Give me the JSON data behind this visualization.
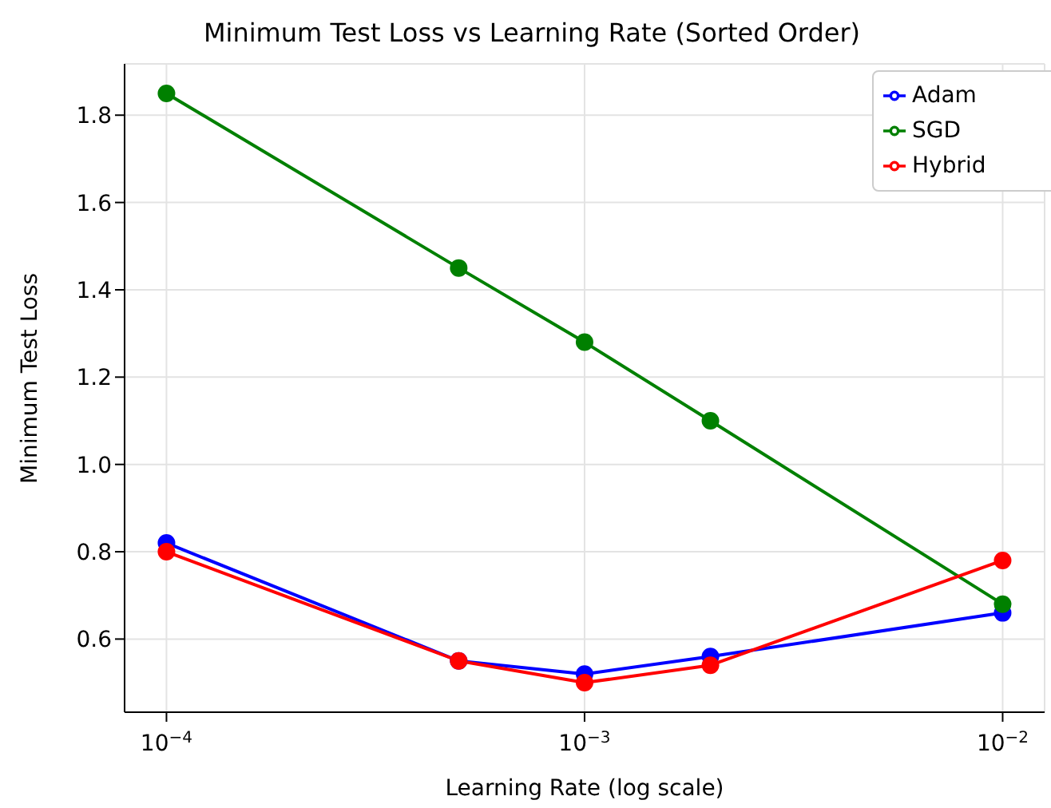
{
  "chart_data": {
    "type": "line",
    "title": "Minimum Test Loss vs Learning Rate (Sorted Order)",
    "xlabel": "Learning Rate (log scale)",
    "ylabel": "Minimum Test Loss",
    "x": [
      0.0001,
      0.0005,
      0.001,
      0.002,
      0.01
    ],
    "series": [
      {
        "name": "Adam",
        "color": "#0000ff",
        "values": [
          0.82,
          0.55,
          0.52,
          0.56,
          0.66
        ]
      },
      {
        "name": "SGD",
        "color": "#008000",
        "values": [
          1.85,
          1.45,
          1.28,
          1.1,
          0.68
        ]
      },
      {
        "name": "Hybrid",
        "color": "#ff0000",
        "values": [
          0.8,
          0.55,
          0.5,
          0.54,
          0.78
        ]
      }
    ],
    "log": "x",
    "xlim": [
      7.94e-05,
      0.0126
    ],
    "xticks": [
      {
        "value": 0.0001,
        "label": "10$^{−4}$"
      },
      {
        "value": 0.001,
        "label": "10$^{−3}$"
      },
      {
        "value": 0.01,
        "label": "10$^{−2}$"
      }
    ],
    "ylim": [
      0.4325,
      1.9175
    ],
    "yticks": [
      0.6,
      0.8,
      {
        "value": 1,
        "label": "1.0"
      },
      1.2,
      1.4,
      1.6,
      1.8
    ],
    "grid": true,
    "legend": "top right",
    "marker": "circle",
    "line_style": "solid"
  }
}
